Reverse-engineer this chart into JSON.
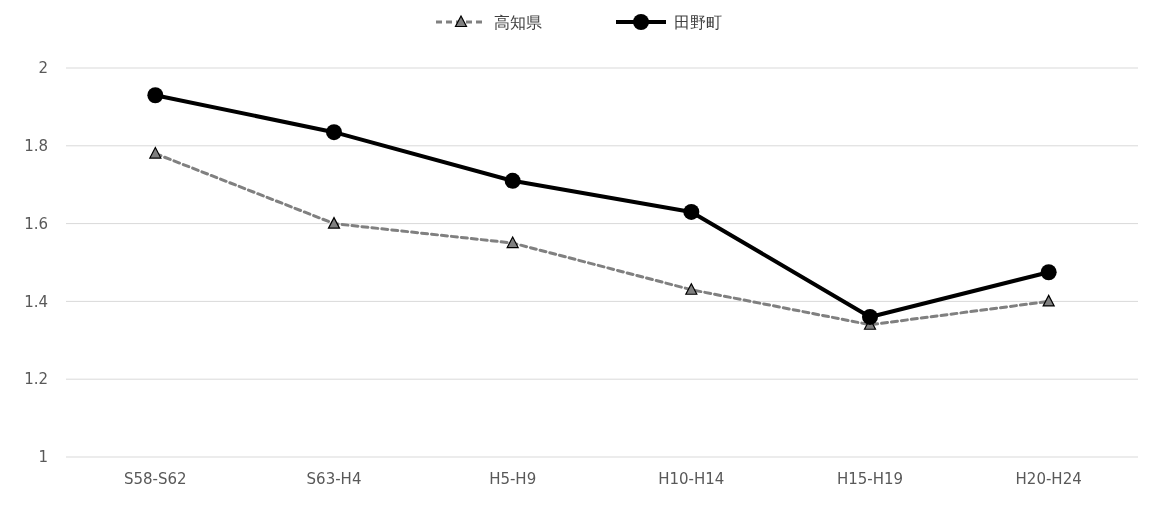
{
  "chart_data": {
    "type": "line",
    "categories": [
      "S58-S62",
      "S63-H4",
      "H5-H9",
      "H10-H14",
      "H15-H19",
      "H20-H24"
    ],
    "series": [
      {
        "name": "高知県",
        "color": "#808080",
        "marker": "triangle",
        "line_style": "dashed",
        "values": [
          1.78,
          1.6,
          1.55,
          1.43,
          1.34,
          1.4
        ]
      },
      {
        "name": "田野町",
        "color": "#000000",
        "marker": "circle",
        "line_style": "solid",
        "values": [
          1.93,
          1.835,
          1.71,
          1.63,
          1.36,
          1.475
        ]
      }
    ],
    "ylim": [
      1,
      2
    ],
    "yticks": [
      1,
      1.2,
      1.4,
      1.6,
      1.8,
      2
    ],
    "grid": "y",
    "legend": "top"
  }
}
